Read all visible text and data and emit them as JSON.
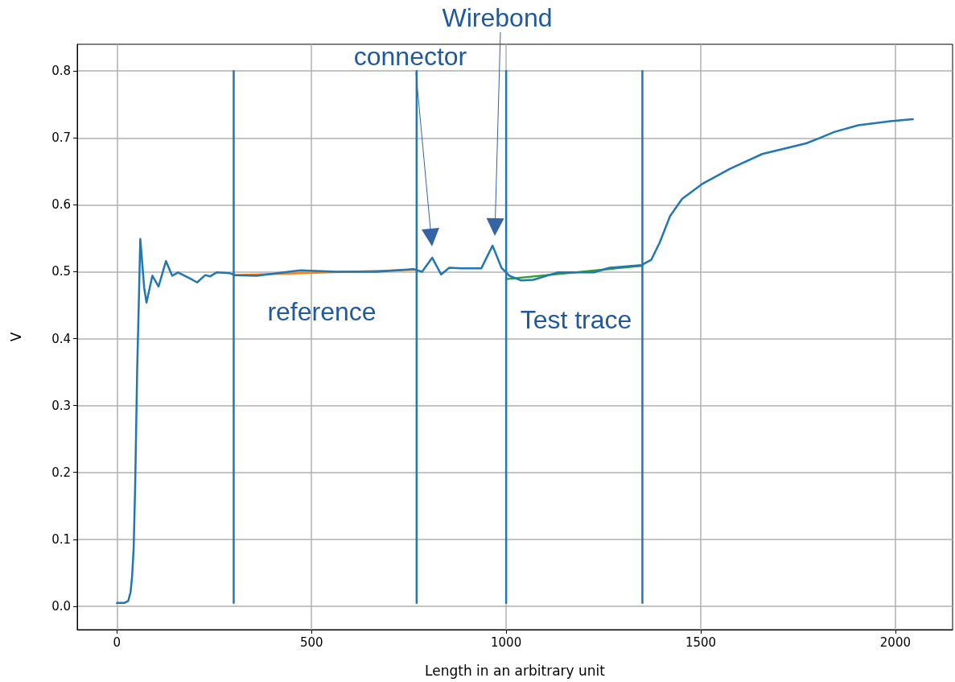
{
  "chart_data": {
    "type": "line",
    "xlabel": "Length in an arbitrary unit",
    "ylabel": "V",
    "xlim": [
      -102,
      2147
    ],
    "xticks": [
      0,
      500,
      1000,
      1500,
      2000
    ],
    "ylim": [
      -0.035,
      0.84
    ],
    "yticks": [
      {
        "value": 0,
        "label": "0.0"
      },
      0.1,
      0.2,
      0.3,
      0.4,
      0.5,
      0.6,
      0.7,
      0.8
    ],
    "grid": true,
    "marker": "none",
    "line_style": "solid",
    "series": [
      {
        "color": "#ff7f0e",
        "x": [
          300,
          770
        ],
        "values": [
          0.495,
          0.503
        ]
      },
      {
        "color": "#2ca02c",
        "x": [
          1000,
          1350
        ],
        "values": [
          0.489,
          0.509
        ]
      },
      {
        "color": "#1f77b4",
        "x": [
          0,
          18.6,
          29,
          35,
          39,
          43,
          47,
          52,
          56,
          60,
          64,
          70,
          76,
          91,
          107,
          126,
          142,
          157,
          194,
          206,
          227,
          239,
          256,
          289,
          303,
          359,
          441,
          472,
          565,
          668,
          761,
          784,
          810,
          833,
          854,
          885,
          936,
          965,
          988,
          1008,
          1039,
          1070,
          1132,
          1225,
          1266,
          1348,
          1373,
          1394,
          1421,
          1452,
          1503,
          1575,
          1658,
          1771,
          1802,
          1843,
          1905,
          1988,
          2045
        ],
        "values": [
          0.005,
          0.005,
          0.008,
          0.021,
          0.045,
          0.087,
          0.185,
          0.354,
          0.45,
          0.549,
          0.52,
          0.476,
          0.454,
          0.494,
          0.478,
          0.516,
          0.494,
          0.499,
          0.488,
          0.484,
          0.495,
          0.493,
          0.499,
          0.498,
          0.495,
          0.494,
          0.5,
          0.502,
          0.5,
          0.5,
          0.504,
          0.5,
          0.521,
          0.496,
          0.506,
          0.505,
          0.505,
          0.539,
          0.506,
          0.494,
          0.487,
          0.488,
          0.499,
          0.499,
          0.506,
          0.51,
          0.518,
          0.543,
          0.583,
          0.609,
          0.631,
          0.654,
          0.676,
          0.692,
          0.699,
          0.709,
          0.719,
          0.725,
          0.728
        ]
      },
      {
        "color": "#1f77b4",
        "x": [
          300,
          300
        ],
        "values": [
          0.005,
          0.8
        ]
      },
      {
        "color": "#1f77b4",
        "x": [
          770,
          770
        ],
        "values": [
          0.005,
          0.8
        ]
      },
      {
        "color": "#1f77b4",
        "x": [
          1000,
          1000
        ],
        "values": [
          0.005,
          0.8
        ]
      },
      {
        "color": "#1f77b4",
        "x": [
          1350,
          1350
        ],
        "values": [
          0.005,
          0.8
        ]
      }
    ],
    "annotations": [
      "connector",
      "Wirebond",
      "reference",
      "Test trace"
    ]
  }
}
